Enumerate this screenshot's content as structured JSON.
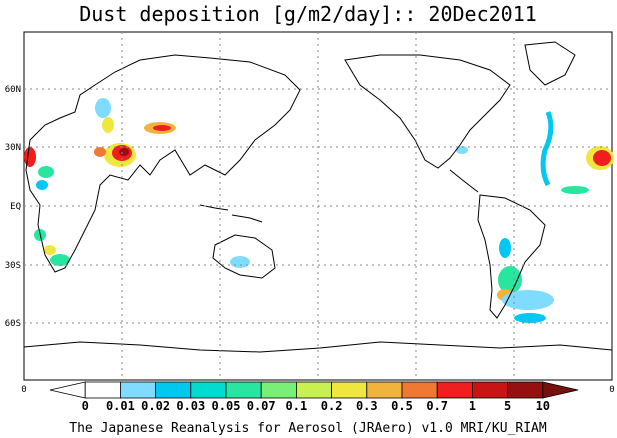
{
  "title": "Dust deposition [g/m2/day]:: 20Dec2011",
  "footer": "The Japanese Reanalysis for Aerosol (JRAero) v1.0 MRI/KU_RIAM",
  "lat_labels": [
    "60N",
    "30N",
    "EQ",
    "30S",
    "60S"
  ],
  "lon_axis": {
    "left_tick": "0",
    "right_tick": "0"
  },
  "colorbar": {
    "labels": [
      "0",
      "0.01",
      "0.02",
      "0.03",
      "0.05",
      "0.07",
      "0.1",
      "0.2",
      "0.3",
      "0.5",
      "0.7",
      "1",
      "5",
      "10"
    ],
    "colors": [
      "#ffffff",
      "#ffffff",
      "#7fdcff",
      "#00c8f0",
      "#00dcd0",
      "#28e6a0",
      "#78f078",
      "#c8f050",
      "#f0e640",
      "#f0b43c",
      "#f07832",
      "#f01e1e",
      "#c81414",
      "#961010",
      "#781010"
    ]
  }
}
